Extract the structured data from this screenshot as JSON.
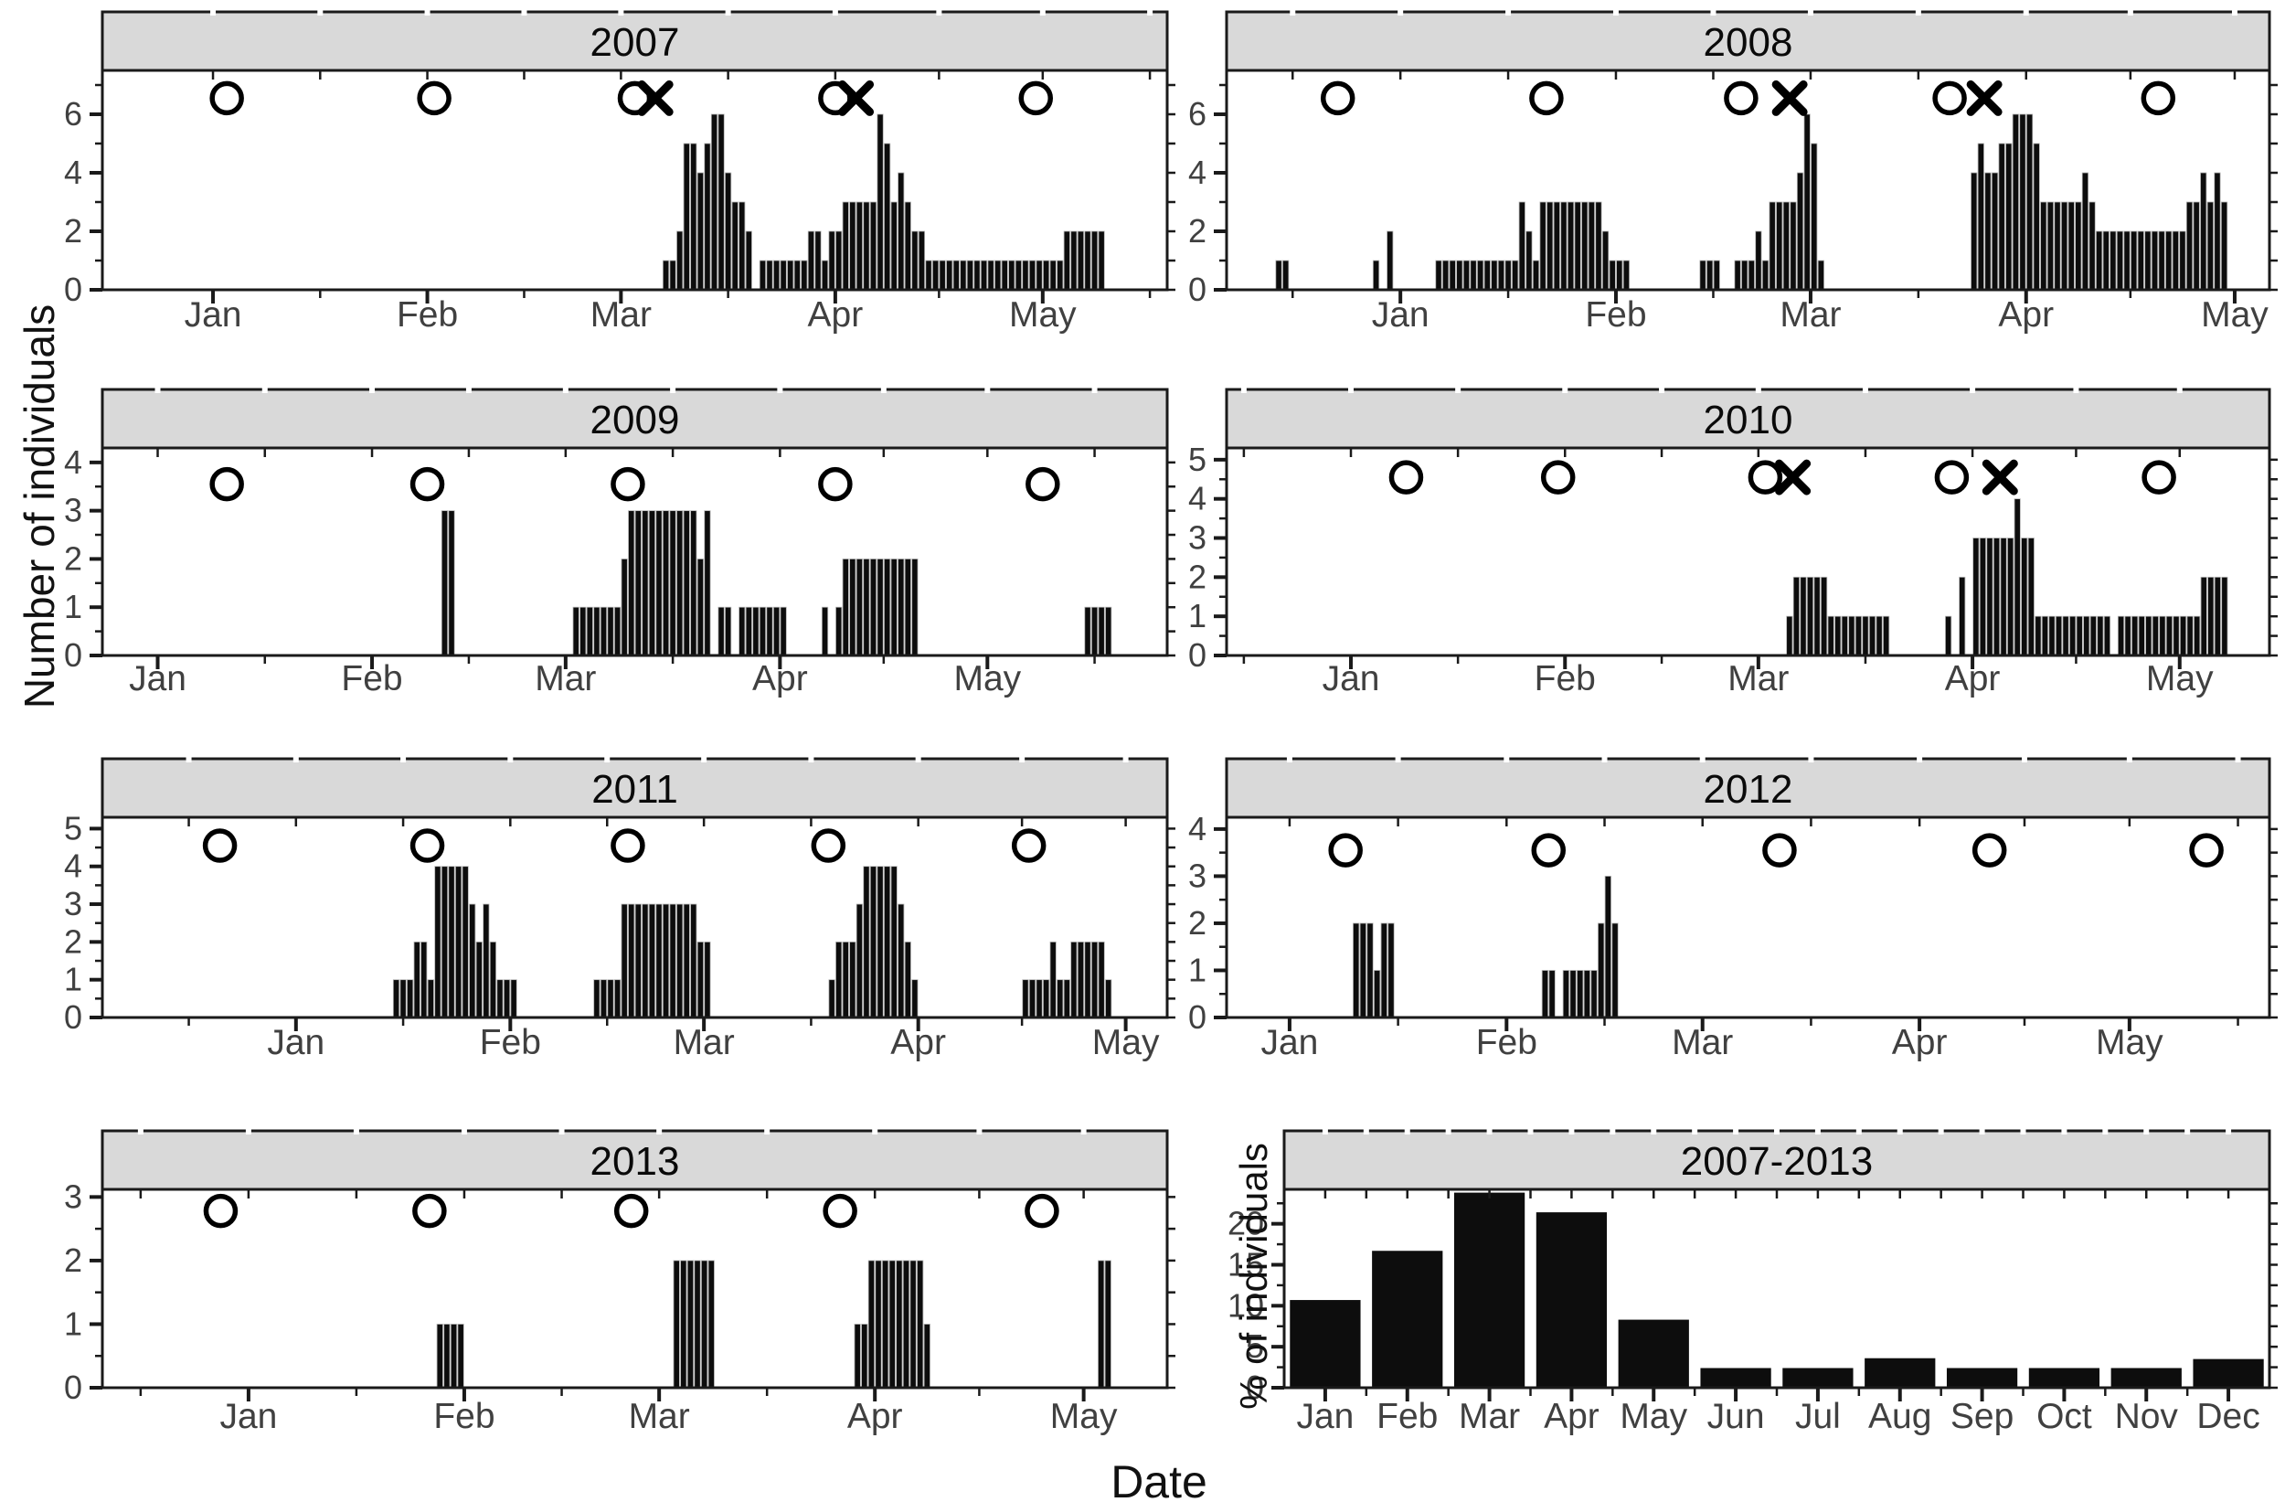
{
  "figure": {
    "y_axis_title": "Number of individuals",
    "summary_y_axis_title": "% of individuals",
    "x_axis_title": "Date",
    "colors": {
      "bar": "#0d0d0d",
      "bar_separator": "#b5b5b5",
      "strip_bg": "#d9d9d9",
      "border": "#1a1a1a",
      "tick_label": "#404040",
      "marker": "#000000"
    }
  },
  "chart_data": {
    "type": "bar",
    "layout": "4x2 facet grid, free x positions, no legend, white background, black daily bars",
    "marker_legend": {
      "circle": "open circle marker row near top of each yearly panel (survey occasion)",
      "x": "bold X marker (event) overlapping circle row"
    },
    "day_scale_note": "day index: Dec1=0, Jan1=31, Feb1=62, Mar1=90, Apr1=121, May1=151",
    "panels": [
      {
        "title": "2007",
        "row": 0,
        "col": "left",
        "type": "daily",
        "x_range": [
          15,
          169
        ],
        "x_ticks": [
          {
            "label": "Jan",
            "day": 31
          },
          {
            "label": "Feb",
            "day": 62
          },
          {
            "label": "Mar",
            "day": 90
          },
          {
            "label": "Apr",
            "day": 121
          },
          {
            "label": "May",
            "day": 151
          }
        ],
        "y_ticks": [
          0,
          2,
          4,
          6
        ],
        "y_max": 7.5,
        "y_minor": 1,
        "marker_y": 6.55,
        "circles": [
          33,
          63,
          92,
          121,
          150
        ],
        "crosses": [
          95,
          124
        ],
        "bars": [
          {
            "start": 96,
            "values": [
              1,
              1,
              2,
              5,
              5,
              4,
              5,
              6,
              6,
              4,
              3,
              3,
              2
            ]
          },
          {
            "start": 110,
            "values": [
              1,
              1,
              1,
              1,
              1,
              1,
              1,
              2,
              2,
              1,
              2,
              2,
              3,
              3,
              3,
              3,
              3,
              6,
              5,
              3,
              4,
              3,
              2,
              2
            ]
          },
          {
            "start": 134,
            "values": [
              1,
              1,
              1,
              1,
              1,
              1,
              1,
              1,
              1,
              1,
              1,
              1,
              1,
              1,
              1,
              1,
              1,
              1,
              1,
              1
            ]
          },
          {
            "start": 154,
            "values": [
              2,
              2,
              2,
              2,
              2,
              2
            ]
          }
        ]
      },
      {
        "title": "2008",
        "row": 0,
        "col": "right",
        "type": "daily",
        "x_range": [
          6,
          156
        ],
        "x_ticks": [
          {
            "label": "Jan",
            "day": 31
          },
          {
            "label": "Feb",
            "day": 62
          },
          {
            "label": "Mar",
            "day": 90
          },
          {
            "label": "Apr",
            "day": 121
          },
          {
            "label": "May",
            "day": 151
          }
        ],
        "y_ticks": [
          0,
          2,
          4,
          6
        ],
        "y_max": 7.5,
        "y_minor": 1,
        "marker_y": 6.55,
        "circles": [
          22,
          52,
          80,
          110,
          140
        ],
        "crosses": [
          87,
          115
        ],
        "bars": [
          {
            "start": 13,
            "values": [
              1,
              1
            ]
          },
          {
            "start": 27,
            "values": [
              1
            ]
          },
          {
            "start": 29,
            "values": [
              2
            ]
          },
          {
            "start": 36,
            "values": [
              1,
              1,
              1,
              1,
              1,
              1,
              1,
              1,
              1,
              1,
              1,
              1
            ]
          },
          {
            "start": 48,
            "values": [
              3,
              2,
              1
            ]
          },
          {
            "start": 51,
            "values": [
              3,
              3,
              3,
              3,
              3,
              3,
              3,
              3,
              3
            ]
          },
          {
            "start": 60,
            "values": [
              2,
              1,
              1,
              1
            ]
          },
          {
            "start": 74,
            "values": [
              1,
              1,
              1
            ]
          },
          {
            "start": 79,
            "values": [
              1,
              1,
              1,
              2,
              1,
              3,
              3,
              3,
              3,
              4,
              6,
              5,
              1
            ]
          },
          {
            "start": 113,
            "values": [
              4,
              5,
              4,
              4,
              5,
              5,
              6,
              6,
              6,
              5
            ]
          },
          {
            "start": 123,
            "values": [
              3,
              3,
              3,
              3,
              3,
              3,
              4,
              3
            ]
          },
          {
            "start": 131,
            "values": [
              2,
              2,
              2,
              2,
              2,
              2,
              2,
              2,
              2,
              2,
              2,
              2,
              2
            ]
          },
          {
            "start": 144,
            "values": [
              3,
              3,
              4,
              3,
              4,
              3
            ]
          }
        ]
      },
      {
        "title": "2009",
        "row": 1,
        "col": "left",
        "type": "daily",
        "x_range": [
          23,
          177
        ],
        "x_ticks": [
          {
            "label": "Jan",
            "day": 31
          },
          {
            "label": "Feb",
            "day": 62
          },
          {
            "label": "Mar",
            "day": 90
          },
          {
            "label": "Apr",
            "day": 121
          },
          {
            "label": "May",
            "day": 151
          }
        ],
        "y_ticks": [
          0,
          1,
          2,
          3,
          4
        ],
        "y_max": 4.3,
        "y_minor": 0.5,
        "marker_y": 3.55,
        "circles": [
          41,
          70,
          99,
          129,
          159
        ],
        "crosses": [],
        "bars": [
          {
            "start": 72,
            "values": [
              3,
              3
            ]
          },
          {
            "start": 91,
            "values": [
              1,
              1,
              1,
              1,
              1,
              1,
              1,
              2
            ]
          },
          {
            "start": 99,
            "values": [
              3,
              3,
              3,
              3,
              3,
              3,
              3,
              3,
              3,
              3,
              2,
              3
            ]
          },
          {
            "start": 112,
            "values": [
              1,
              1
            ]
          },
          {
            "start": 115,
            "values": [
              1,
              1,
              1,
              1,
              1,
              1,
              1
            ]
          },
          {
            "start": 127,
            "values": [
              1
            ]
          },
          {
            "start": 129,
            "values": [
              1
            ]
          },
          {
            "start": 130,
            "values": [
              2,
              2,
              2,
              2,
              2,
              2,
              2,
              2,
              2,
              2,
              2
            ]
          },
          {
            "start": 165,
            "values": [
              1,
              1,
              1,
              1
            ]
          }
        ]
      },
      {
        "title": "2010",
        "row": 1,
        "col": "right",
        "type": "daily",
        "x_range": [
          13,
          164
        ],
        "x_ticks": [
          {
            "label": "Jan",
            "day": 31
          },
          {
            "label": "Feb",
            "day": 62
          },
          {
            "label": "Mar",
            "day": 90
          },
          {
            "label": "Apr",
            "day": 121
          },
          {
            "label": "May",
            "day": 151
          }
        ],
        "y_ticks": [
          0,
          1,
          2,
          3,
          4,
          5
        ],
        "y_max": 5.3,
        "y_minor": 0.5,
        "marker_y": 4.55,
        "circles": [
          39,
          61,
          91,
          118,
          148
        ],
        "crosses": [
          95,
          125
        ],
        "bars": [
          {
            "start": 94,
            "values": [
              1,
              2,
              2,
              2,
              2,
              2
            ]
          },
          {
            "start": 100,
            "values": [
              1,
              1,
              1,
              1,
              1,
              1,
              1,
              1,
              1
            ]
          },
          {
            "start": 117,
            "values": [
              1
            ]
          },
          {
            "start": 119,
            "values": [
              2
            ]
          },
          {
            "start": 121,
            "values": [
              3,
              3,
              3,
              3,
              3,
              3,
              4,
              3,
              3
            ]
          },
          {
            "start": 130,
            "values": [
              1,
              1,
              1,
              1,
              1,
              1,
              1,
              1,
              1,
              1,
              1
            ]
          },
          {
            "start": 142,
            "values": [
              1,
              1,
              1,
              1,
              1,
              1,
              1,
              1,
              1,
              1,
              1,
              1
            ]
          },
          {
            "start": 154,
            "values": [
              2,
              2,
              2,
              2
            ]
          }
        ]
      },
      {
        "title": "2011",
        "row": 2,
        "col": "left",
        "type": "daily",
        "x_range": [
          3,
          157
        ],
        "x_ticks": [
          {
            "label": "Jan",
            "day": 31
          },
          {
            "label": "Feb",
            "day": 62
          },
          {
            "label": "Mar",
            "day": 90
          },
          {
            "label": "Apr",
            "day": 121
          },
          {
            "label": "May",
            "day": 151
          }
        ],
        "y_ticks": [
          0,
          1,
          2,
          3,
          4,
          5
        ],
        "y_max": 5.3,
        "y_minor": 0.5,
        "marker_y": 4.55,
        "circles": [
          20,
          50,
          79,
          108,
          137
        ],
        "crosses": [],
        "bars": [
          {
            "start": 45,
            "values": [
              1,
              1,
              1,
              2,
              2,
              1,
              4,
              4,
              4,
              4,
              4,
              3,
              2,
              3,
              2,
              1,
              1,
              1
            ]
          },
          {
            "start": 74,
            "values": [
              1,
              1,
              1,
              1,
              3,
              3,
              3,
              3,
              3,
              3,
              3,
              3,
              3,
              3,
              3,
              2,
              2
            ]
          },
          {
            "start": 108,
            "values": [
              1,
              2,
              2,
              2,
              3,
              4,
              4,
              4,
              4,
              4,
              3,
              2,
              1
            ]
          },
          {
            "start": 136,
            "values": [
              1,
              1,
              1,
              1,
              2,
              1,
              1,
              2,
              2,
              2,
              2,
              2,
              1
            ]
          }
        ]
      },
      {
        "title": "2012",
        "row": 2,
        "col": "right",
        "type": "daily",
        "x_range": [
          22,
          171
        ],
        "x_ticks": [
          {
            "label": "Jan",
            "day": 31
          },
          {
            "label": "Feb",
            "day": 62
          },
          {
            "label": "Mar",
            "day": 90
          },
          {
            "label": "Apr",
            "day": 121
          },
          {
            "label": "May",
            "day": 151
          }
        ],
        "y_ticks": [
          0,
          1,
          2,
          3,
          4
        ],
        "y_max": 4.25,
        "y_minor": 0.5,
        "marker_y": 3.55,
        "circles": [
          39,
          68,
          101,
          131,
          162
        ],
        "crosses": [],
        "bars": [
          {
            "start": 40,
            "values": [
              2,
              2,
              2,
              1,
              2,
              2
            ]
          },
          {
            "start": 67,
            "values": [
              1,
              1
            ]
          },
          {
            "start": 70,
            "values": [
              1,
              1,
              1,
              1,
              1
            ]
          },
          {
            "start": 75,
            "values": [
              2,
              3,
              2
            ]
          }
        ]
      },
      {
        "title": "2013",
        "row": 3,
        "col": "left",
        "type": "daily",
        "x_range": [
          10,
          163
        ],
        "x_ticks": [
          {
            "label": "Jan",
            "day": 31
          },
          {
            "label": "Feb",
            "day": 62
          },
          {
            "label": "Mar",
            "day": 90
          },
          {
            "label": "Apr",
            "day": 121
          },
          {
            "label": "May",
            "day": 151
          }
        ],
        "y_ticks": [
          0,
          1,
          2,
          3
        ],
        "y_max": 3.12,
        "y_minor": 0.5,
        "marker_y": 2.78,
        "circles": [
          27,
          57,
          86,
          116,
          145
        ],
        "crosses": [],
        "bars": [
          {
            "start": 58,
            "values": [
              1,
              1,
              1,
              1
            ]
          },
          {
            "start": 92,
            "values": [
              2,
              2,
              2,
              2,
              2,
              2
            ]
          },
          {
            "start": 118,
            "values": [
              1,
              1
            ]
          },
          {
            "start": 120,
            "values": [
              2,
              2,
              2,
              2,
              2,
              2,
              2,
              2,
              1
            ]
          },
          {
            "start": 153,
            "values": [
              2,
              2
            ]
          }
        ]
      },
      {
        "title": "2007-2013",
        "row": 3,
        "col": "sum",
        "type": "monthly",
        "categories": [
          "Jan",
          "Feb",
          "Mar",
          "Apr",
          "May",
          "Jun",
          "Jul",
          "Aug",
          "Sep",
          "Oct",
          "Nov",
          "Dec"
        ],
        "values": [
          10.7,
          16.7,
          23.8,
          21.4,
          8.3,
          2.4,
          2.4,
          3.6,
          2.4,
          2.4,
          2.4,
          3.5
        ],
        "y_ticks": [
          0,
          5,
          10,
          15,
          20
        ],
        "y_max": 24.2,
        "y_minor": 2.5,
        "circles": [],
        "crosses": []
      }
    ]
  }
}
